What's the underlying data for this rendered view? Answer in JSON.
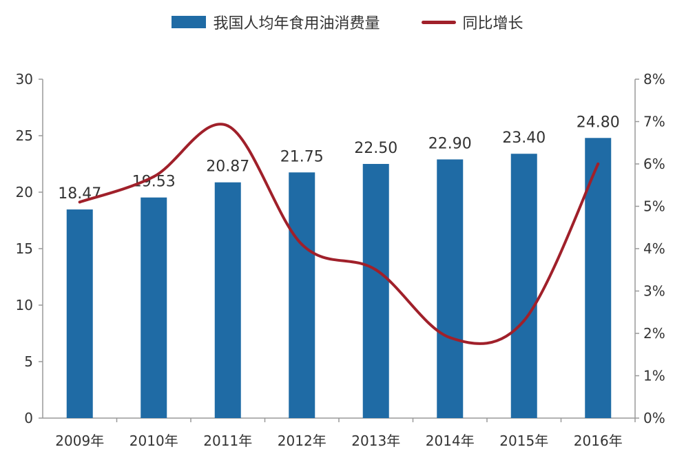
{
  "legend": {
    "bar_label": "我国人均年食用油消费量",
    "line_label": "同比增长"
  },
  "colors": {
    "bar": "#1f6ba5",
    "line": "#a0202a",
    "axis": "#999999",
    "text": "#333333"
  },
  "chart_data": {
    "type": "bar",
    "categories": [
      "2009年",
      "2010年",
      "2011年",
      "2012年",
      "2013年",
      "2014年",
      "2015年",
      "2016年"
    ],
    "series": [
      {
        "name": "我国人均年食用油消费量",
        "type": "bar",
        "axis": "left",
        "values": [
          18.47,
          19.53,
          20.87,
          21.75,
          22.5,
          22.9,
          23.4,
          24.8
        ],
        "labels": [
          "18.47",
          "19.53",
          "20.87",
          "21.75",
          "22.50",
          "22.90",
          "23.40",
          "24.80"
        ]
      },
      {
        "name": "同比增长",
        "type": "line",
        "axis": "right",
        "smooth": true,
        "values": [
          5.1,
          5.7,
          6.9,
          4.1,
          3.5,
          1.9,
          2.3,
          6.0
        ],
        "unit": "%"
      }
    ],
    "left_axis": {
      "ylim": [
        0,
        30
      ],
      "ticks": [
        "0",
        "5",
        "10",
        "15",
        "20",
        "25",
        "30"
      ]
    },
    "right_axis": {
      "ylim": [
        0,
        8
      ],
      "ticks": [
        "0%",
        "1%",
        "2%",
        "3%",
        "4%",
        "5%",
        "6%",
        "7%",
        "8%"
      ]
    },
    "legend_position": "top-center",
    "grid": false
  }
}
